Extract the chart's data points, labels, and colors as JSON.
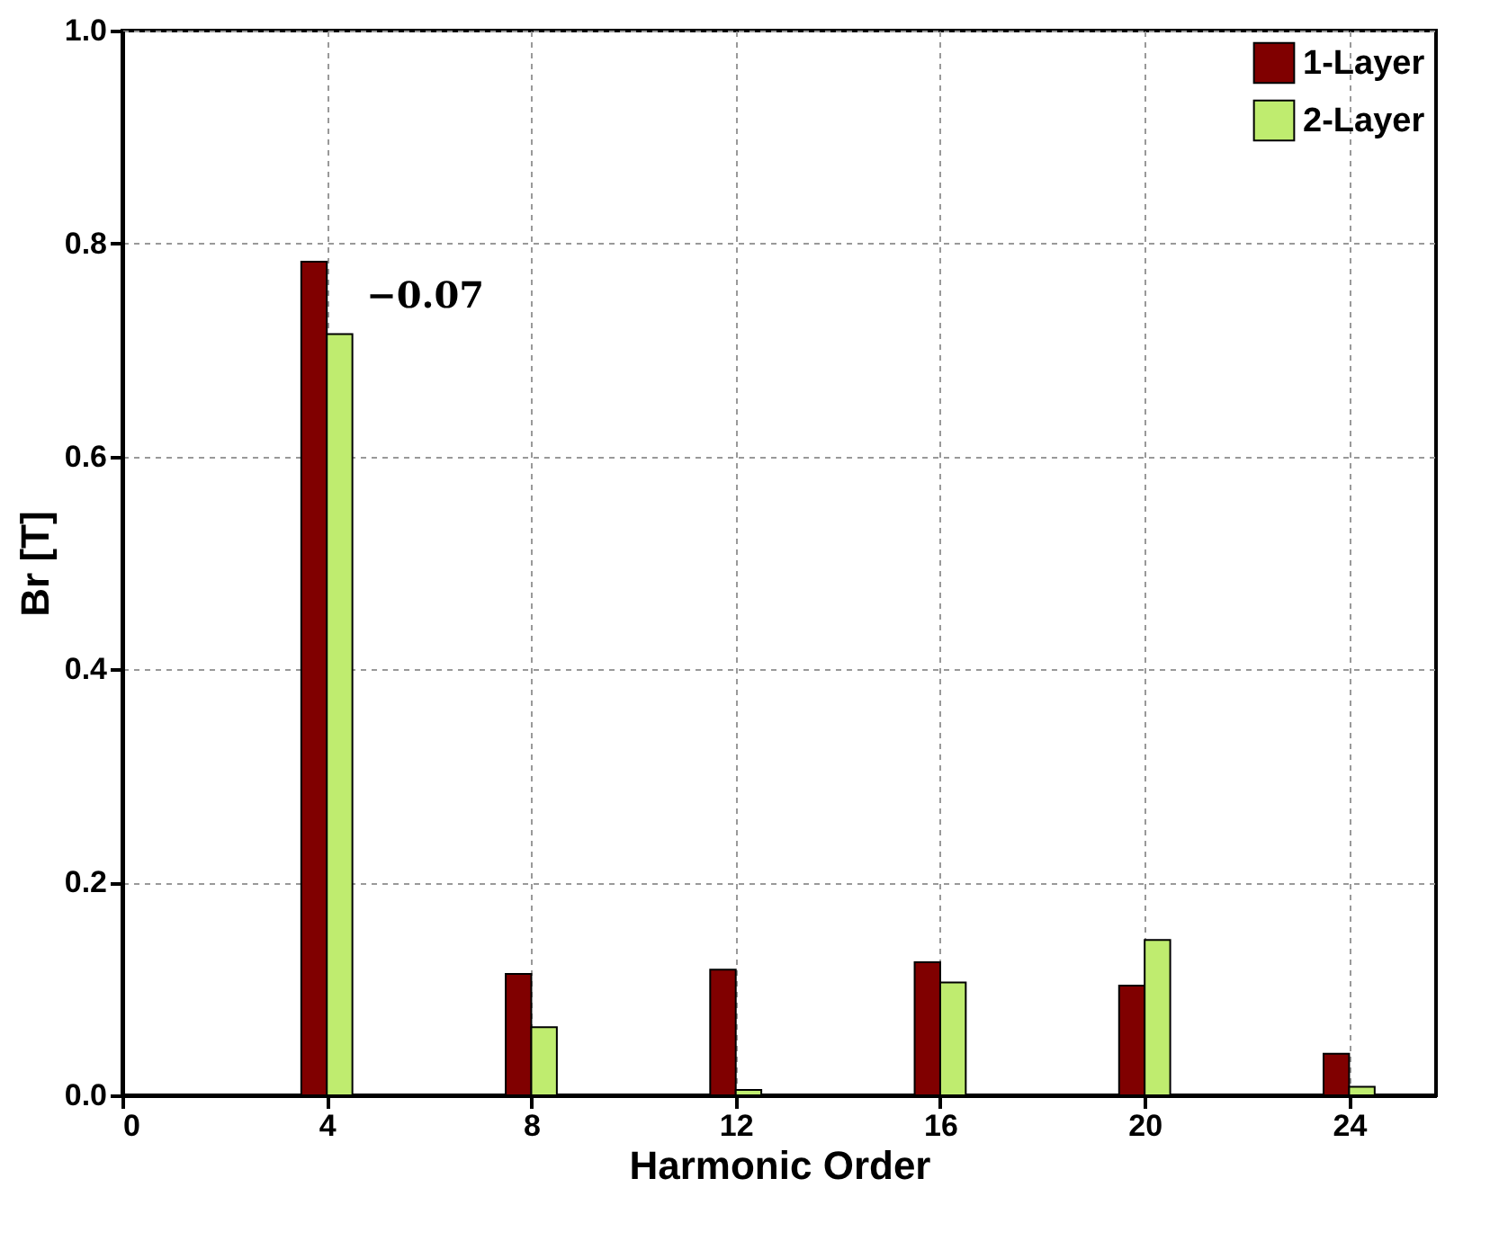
{
  "chart_data": {
    "type": "bar",
    "xlabel": "Harmonic Order",
    "ylabel": "Br [T]",
    "x": [
      4,
      8,
      12,
      16,
      20,
      24
    ],
    "series": [
      {
        "name": "1-Layer",
        "color": "#800000",
        "values": [
          0.783,
          0.114,
          0.118,
          0.125,
          0.103,
          0.039
        ]
      },
      {
        "name": "2-Layer",
        "color": "#bfec6f",
        "values": [
          0.715,
          0.064,
          0.005,
          0.106,
          0.146,
          0.008
        ]
      }
    ],
    "xlim": [
      0,
      25.7
    ],
    "xticks": [
      0,
      4,
      8,
      12,
      16,
      20,
      24
    ],
    "ylim": [
      0,
      1
    ],
    "yticks": [
      {
        "value": 0,
        "label": "0.0"
      },
      {
        "value": 0.2,
        "label": "0.2"
      },
      {
        "value": 0.4,
        "label": "0.4"
      },
      {
        "value": 0.6,
        "label": "0.6"
      },
      {
        "value": 0.8,
        "label": "0.8"
      },
      {
        "value": 1,
        "label": "1.0"
      }
    ],
    "annotations": [
      {
        "text": "−0.07",
        "x": 4,
        "y": 0.75
      }
    ],
    "grid": true,
    "legend": "top right"
  }
}
